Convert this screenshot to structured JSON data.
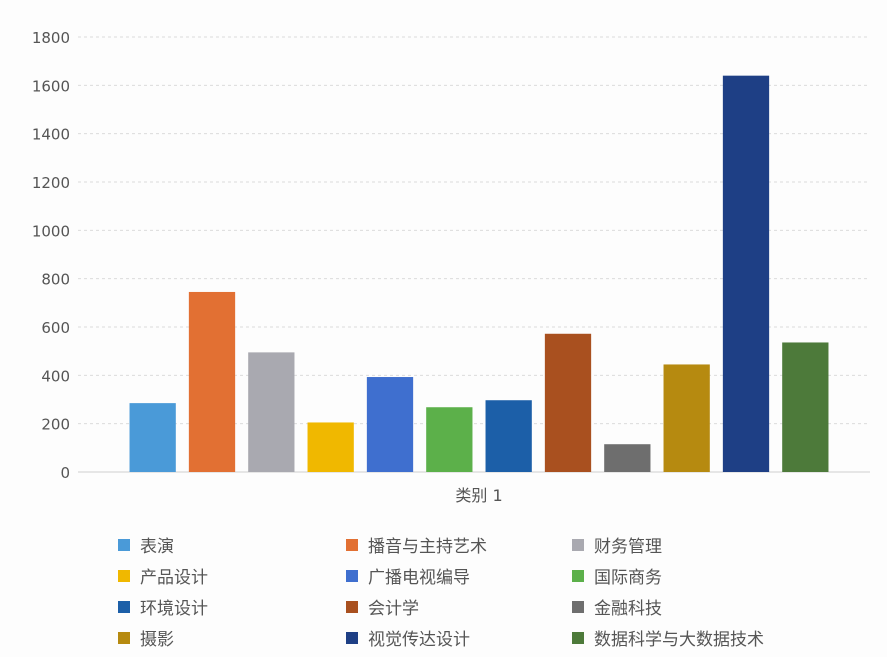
{
  "chart_data": {
    "type": "bar",
    "title": "",
    "xlabel": "类别 1",
    "ylabel": "",
    "ylim": [
      0,
      1800
    ],
    "yticks": [
      0,
      200,
      400,
      600,
      800,
      1000,
      1200,
      1400,
      1600,
      1800
    ],
    "grid": true,
    "legend_position": "bottom",
    "categories": [
      "类别 1"
    ],
    "series": [
      {
        "name": "表演",
        "values": [
          285
        ],
        "color": "#4a9ad8"
      },
      {
        "name": "播音与主持艺术",
        "values": [
          745
        ],
        "color": "#e27033"
      },
      {
        "name": "财务管理",
        "values": [
          495
        ],
        "color": "#a9a9b0"
      },
      {
        "name": "产品设计",
        "values": [
          205
        ],
        "color": "#f0b800"
      },
      {
        "name": "广播电视编导",
        "values": [
          393
        ],
        "color": "#3f6fcf"
      },
      {
        "name": "国际商务",
        "values": [
          268
        ],
        "color": "#5cb04a"
      },
      {
        "name": "环境设计",
        "values": [
          297
        ],
        "color": "#1c5fa8"
      },
      {
        "name": "会计学",
        "values": [
          572
        ],
        "color": "#a9501f"
      },
      {
        "name": "金融科技",
        "values": [
          115
        ],
        "color": "#6e6e6e"
      },
      {
        "name": "摄影",
        "values": [
          445
        ],
        "color": "#b68a10"
      },
      {
        "name": "视觉传达设计",
        "values": [
          1640
        ],
        "color": "#1e3f85"
      },
      {
        "name": "数据科学与大数据技术",
        "values": [
          536
        ],
        "color": "#4d7a3a"
      }
    ]
  }
}
